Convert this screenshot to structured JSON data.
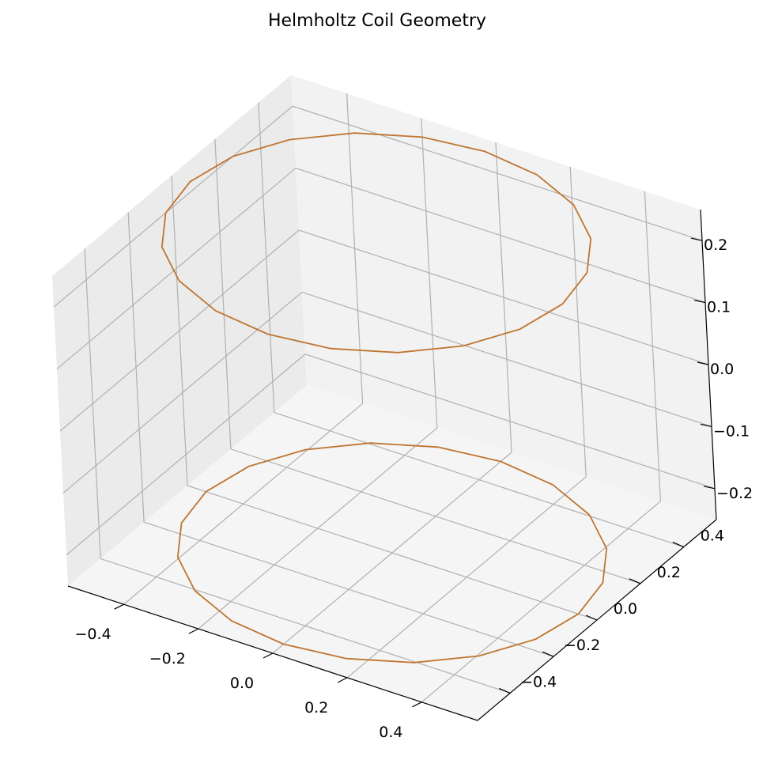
{
  "chart_data": {
    "type": "line3d",
    "title": "Helmholtz Coil Geometry",
    "xlabel": "",
    "ylabel": "",
    "zlabel": "",
    "xlim": [
      -0.55,
      0.55
    ],
    "ylim": [
      -0.55,
      0.55
    ],
    "zlim": [
      -0.25,
      0.25
    ],
    "x_ticks": [
      -0.4,
      -0.2,
      0.0,
      0.2,
      0.4
    ],
    "x_tick_labels": [
      "−0.4",
      "−0.2",
      "0.0",
      "0.2",
      "0.4"
    ],
    "y_ticks": [
      -0.4,
      -0.2,
      0.0,
      0.2,
      0.4
    ],
    "y_tick_labels": [
      "−0.4",
      "−0.2",
      "0.0",
      "0.2",
      "0.4"
    ],
    "z_ticks": [
      -0.2,
      -0.1,
      0.0,
      0.1,
      0.2
    ],
    "z_tick_labels": [
      "−0.2",
      "−0.1",
      "0.0",
      "0.1",
      "0.2"
    ],
    "grid": true,
    "legend": "none",
    "series": [
      {
        "color": "#bf7532",
        "shape": "circle",
        "radius": 0.5,
        "z": 0.25,
        "segments": 20
      },
      {
        "color": "#bf7532",
        "shape": "circle",
        "radius": 0.5,
        "z": -0.25,
        "segments": 20
      }
    ]
  }
}
